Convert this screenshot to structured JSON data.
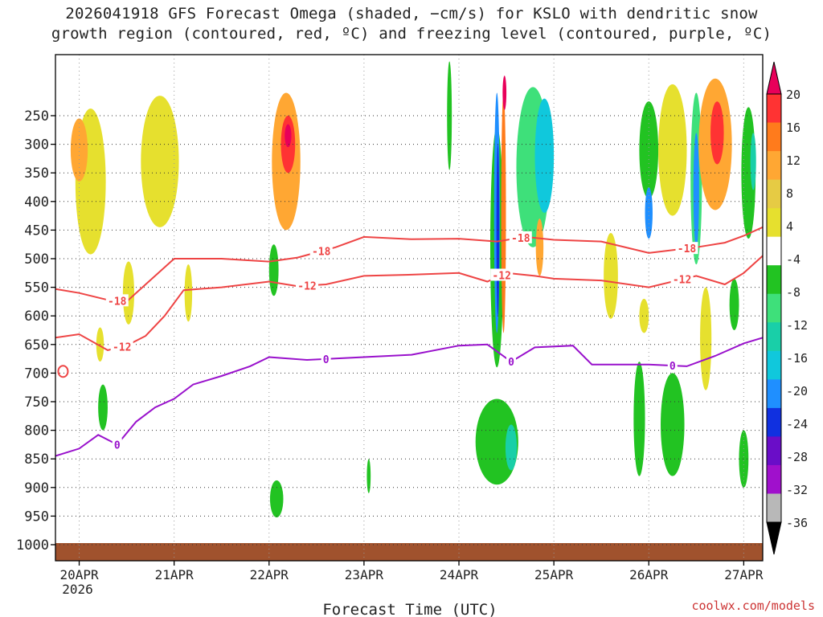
{
  "title_line1": "2026041918 GFS Forecast Omega (shaded, −cm/s) for KSLO with dendritic snow",
  "title_line2": "growth region (contoured, red, ºC) and freezing level (contoured, purple, ºC)",
  "credit": "coolwx.com/models",
  "colors": {
    "ground": "#a0522d",
    "dgz_contour": "#ee4444",
    "freezing_contour": "#9911cc"
  },
  "chart_data": {
    "type": "heatmap",
    "title": "2026041918 GFS Forecast Omega (shaded, −cm/s) for KSLO with dendritic snow growth region (contoured, red, ºC) and freezing level (contoured, purple, ºC)",
    "xlabel": "Forecast Time (UTC)",
    "ylabel": "",
    "x_range_days": [
      -0.25,
      7.2
    ],
    "ylim": [
      1040,
      200
    ],
    "x_ticks": [
      {
        "day": 0,
        "label": "20APR",
        "sublabel": "2026"
      },
      {
        "day": 1,
        "label": "21APR"
      },
      {
        "day": 2,
        "label": "22APR"
      },
      {
        "day": 3,
        "label": "23APR"
      },
      {
        "day": 4,
        "label": "24APR"
      },
      {
        "day": 5,
        "label": "25APR"
      },
      {
        "day": 6,
        "label": "26APR"
      },
      {
        "day": 7,
        "label": "27APR"
      }
    ],
    "y_ticks": [
      "250",
      "300",
      "350",
      "400",
      "450",
      "500",
      "550",
      "600",
      "650",
      "700",
      "750",
      "800",
      "850",
      "900",
      "950",
      "1000"
    ],
    "colorbar": {
      "labels": [
        "20",
        "16",
        "12",
        "8",
        "4",
        "-4",
        "-8",
        "-12",
        "-16",
        "-20",
        "-24",
        "-28",
        "-32",
        "-36"
      ],
      "colors": [
        "#e8005a",
        "#ff3333",
        "#ff7b1c",
        "#ffa733",
        "#e6cb44",
        "#e6e02e",
        "#ffffff",
        "#22c322",
        "#3ee07a",
        "#19cfa8",
        "#10c8dc",
        "#1f8fff",
        "#1030e0",
        "#6a0dc8",
        "#a010cc",
        "#b8b8b8",
        "#000000"
      ],
      "max_arrow": "#e8005a",
      "min_arrow": "#000000"
    },
    "contours": [
      {
        "name": "dgz-minus18",
        "level": "-18",
        "color": "#ee4444",
        "points": [
          [
            -0.25,
            553
          ],
          [
            0,
            560
          ],
          [
            0.3,
            572
          ],
          [
            0.5,
            575
          ],
          [
            0.7,
            545
          ],
          [
            1.0,
            500
          ],
          [
            1.5,
            500
          ],
          [
            2.0,
            505
          ],
          [
            2.3,
            498
          ],
          [
            2.7,
            480
          ],
          [
            3.0,
            462
          ],
          [
            3.5,
            466
          ],
          [
            4.0,
            465
          ],
          [
            4.4,
            470
          ],
          [
            4.7,
            462
          ],
          [
            5.0,
            467
          ],
          [
            5.5,
            470
          ],
          [
            6.0,
            490
          ],
          [
            6.5,
            480
          ],
          [
            6.8,
            472
          ],
          [
            7.0,
            460
          ],
          [
            7.2,
            445
          ]
        ],
        "labels": [
          {
            "day": 0.4,
            "text": "-18"
          },
          {
            "day": 2.55,
            "text": "-18"
          },
          {
            "day": 4.65,
            "text": "-18"
          },
          {
            "day": 6.4,
            "text": "-18"
          }
        ]
      },
      {
        "name": "dgz-minus12",
        "level": "-12",
        "color": "#ee4444",
        "points": [
          [
            -0.25,
            638
          ],
          [
            0,
            632
          ],
          [
            0.3,
            660
          ],
          [
            0.5,
            652
          ],
          [
            0.7,
            635
          ],
          [
            0.9,
            600
          ],
          [
            1.1,
            555
          ],
          [
            1.5,
            550
          ],
          [
            2.0,
            540
          ],
          [
            2.3,
            548
          ],
          [
            2.6,
            545
          ],
          [
            3.0,
            530
          ],
          [
            3.5,
            528
          ],
          [
            4.0,
            525
          ],
          [
            4.3,
            540
          ],
          [
            4.5,
            525
          ],
          [
            4.8,
            530
          ],
          [
            5.0,
            535
          ],
          [
            5.5,
            538
          ],
          [
            6.0,
            550
          ],
          [
            6.5,
            530
          ],
          [
            6.8,
            545
          ],
          [
            7.0,
            525
          ],
          [
            7.2,
            495
          ]
        ],
        "labels": [
          {
            "day": 0.45,
            "text": "-12"
          },
          {
            "day": 2.4,
            "text": "-12"
          },
          {
            "day": 4.45,
            "text": "-12"
          },
          {
            "day": 6.35,
            "text": "-12"
          }
        ]
      },
      {
        "name": "freezing-level",
        "level": "0",
        "color": "#9911cc",
        "points": [
          [
            -0.25,
            845
          ],
          [
            0,
            832
          ],
          [
            0.2,
            808
          ],
          [
            0.4,
            825
          ],
          [
            0.6,
            785
          ],
          [
            0.8,
            760
          ],
          [
            1.0,
            745
          ],
          [
            1.2,
            720
          ],
          [
            1.5,
            705
          ],
          [
            1.8,
            688
          ],
          [
            2.0,
            672
          ],
          [
            2.4,
            677
          ],
          [
            3.0,
            672
          ],
          [
            3.5,
            668
          ],
          [
            4.0,
            652
          ],
          [
            4.3,
            650
          ],
          [
            4.55,
            680
          ],
          [
            4.8,
            655
          ],
          [
            5.2,
            652
          ],
          [
            5.4,
            685
          ],
          [
            6.0,
            685
          ],
          [
            6.4,
            688
          ],
          [
            6.7,
            670
          ],
          [
            7.0,
            648
          ],
          [
            7.2,
            638
          ]
        ],
        "labels": [
          {
            "day": 0.4,
            "text": "0"
          },
          {
            "day": 2.6,
            "text": "0"
          },
          {
            "day": 4.55,
            "text": "0"
          },
          {
            "day": 6.25,
            "text": "0"
          }
        ]
      }
    ],
    "dgz_loop": {
      "day": -0.17,
      "pressure": 697
    },
    "omega_regions": [
      {
        "day": 0.12,
        "p": 365,
        "wd": 0.32,
        "dp": 255,
        "color": "#e6e02e"
      },
      {
        "day": 0.0,
        "p": 310,
        "wd": 0.18,
        "dp": 110,
        "color": "#ffa733"
      },
      {
        "day": 0.52,
        "p": 560,
        "wd": 0.12,
        "dp": 110,
        "color": "#e6e02e"
      },
      {
        "day": 0.85,
        "p": 330,
        "wd": 0.4,
        "dp": 230,
        "color": "#e6e02e"
      },
      {
        "day": 0.22,
        "p": 650,
        "wd": 0.08,
        "dp": 60,
        "color": "#e6e02e"
      },
      {
        "day": 2.18,
        "p": 330,
        "wd": 0.3,
        "dp": 240,
        "color": "#ffa733"
      },
      {
        "day": 2.2,
        "p": 300,
        "wd": 0.15,
        "dp": 100,
        "color": "#ff3333"
      },
      {
        "day": 2.2,
        "p": 285,
        "wd": 0.07,
        "dp": 40,
        "color": "#e8005a"
      },
      {
        "day": 2.08,
        "p": 920,
        "wd": 0.14,
        "dp": 65,
        "color": "#22c322"
      },
      {
        "day": 0.25,
        "p": 760,
        "wd": 0.1,
        "dp": 80,
        "color": "#22c322"
      },
      {
        "day": 2.05,
        "p": 520,
        "wd": 0.1,
        "dp": 90,
        "color": "#22c322"
      },
      {
        "day": 4.4,
        "p": 480,
        "wd": 0.14,
        "dp": 420,
        "color": "#22c322"
      },
      {
        "day": 4.4,
        "p": 420,
        "wd": 0.06,
        "dp": 420,
        "color": "#1f8fff"
      },
      {
        "day": 4.41,
        "p": 450,
        "wd": 0.03,
        "dp": 300,
        "color": "#1030e0"
      },
      {
        "day": 4.47,
        "p": 420,
        "wd": 0.05,
        "dp": 420,
        "color": "#ff7b1c"
      },
      {
        "day": 4.48,
        "p": 210,
        "wd": 0.04,
        "dp": 60,
        "color": "#e8005a"
      },
      {
        "day": 4.78,
        "p": 340,
        "wd": 0.35,
        "dp": 280,
        "color": "#3ee07a"
      },
      {
        "day": 4.9,
        "p": 320,
        "wd": 0.2,
        "dp": 200,
        "color": "#10c8dc"
      },
      {
        "day": 4.4,
        "p": 820,
        "wd": 0.45,
        "dp": 150,
        "color": "#22c322"
      },
      {
        "day": 4.55,
        "p": 830,
        "wd": 0.12,
        "dp": 80,
        "color": "#19cfa8"
      },
      {
        "day": 4.85,
        "p": 480,
        "wd": 0.08,
        "dp": 100,
        "color": "#ffa733"
      },
      {
        "day": 5.6,
        "p": 530,
        "wd": 0.15,
        "dp": 150,
        "color": "#e6e02e"
      },
      {
        "day": 5.9,
        "p": 780,
        "wd": 0.12,
        "dp": 200,
        "color": "#22c322"
      },
      {
        "day": 6.0,
        "p": 310,
        "wd": 0.2,
        "dp": 170,
        "color": "#22c322"
      },
      {
        "day": 6.0,
        "p": 420,
        "wd": 0.08,
        "dp": 90,
        "color": "#1f8fff"
      },
      {
        "day": 6.25,
        "p": 310,
        "wd": 0.3,
        "dp": 230,
        "color": "#e6e02e"
      },
      {
        "day": 6.5,
        "p": 360,
        "wd": 0.12,
        "dp": 300,
        "color": "#3ee07a"
      },
      {
        "day": 6.5,
        "p": 380,
        "wd": 0.06,
        "dp": 200,
        "color": "#1f8fff"
      },
      {
        "day": 6.7,
        "p": 300,
        "wd": 0.35,
        "dp": 230,
        "color": "#ffa733"
      },
      {
        "day": 6.72,
        "p": 280,
        "wd": 0.14,
        "dp": 110,
        "color": "#ff3333"
      },
      {
        "day": 6.6,
        "p": 640,
        "wd": 0.12,
        "dp": 180,
        "color": "#e6e02e"
      },
      {
        "day": 6.25,
        "p": 790,
        "wd": 0.25,
        "dp": 180,
        "color": "#22c322"
      },
      {
        "day": 7.05,
        "p": 350,
        "wd": 0.15,
        "dp": 230,
        "color": "#22c322"
      },
      {
        "day": 7.1,
        "p": 330,
        "wd": 0.06,
        "dp": 100,
        "color": "#19cfa8"
      },
      {
        "day": 7.0,
        "p": 850,
        "wd": 0.1,
        "dp": 100,
        "color": "#22c322"
      },
      {
        "day": 6.9,
        "p": 580,
        "wd": 0.1,
        "dp": 90,
        "color": "#22c322"
      },
      {
        "day": 3.9,
        "p": 250,
        "wd": 0.05,
        "dp": 190,
        "color": "#22c322"
      },
      {
        "day": 3.05,
        "p": 880,
        "wd": 0.04,
        "dp": 60,
        "color": "#22c322"
      },
      {
        "day": 1.15,
        "p": 560,
        "wd": 0.08,
        "dp": 100,
        "color": "#e6e02e"
      },
      {
        "day": 5.95,
        "p": 600,
        "wd": 0.1,
        "dp": 60,
        "color": "#e6e02e"
      }
    ]
  }
}
